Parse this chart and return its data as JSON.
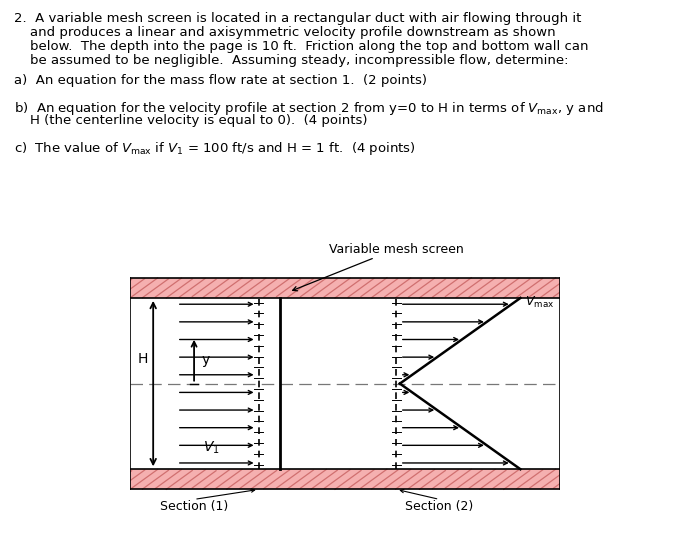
{
  "bg_color": "#ffffff",
  "wall_color": "#f5b0b0",
  "hatch_color": "#d07070",
  "section_label_1": "Section (1)",
  "section_label_2": "Section (2)",
  "annotation_screen": "Variable mesh screen"
}
